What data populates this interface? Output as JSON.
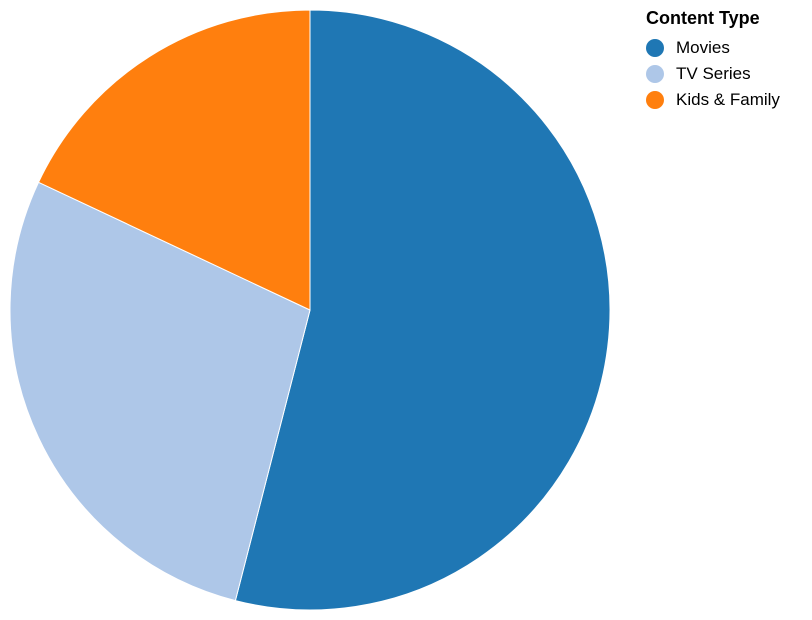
{
  "chart_data": {
    "type": "pie",
    "legend_title": "Content Type",
    "legend_position": "top-right",
    "categories": [
      "Movies",
      "TV Series",
      "Kids & Family"
    ],
    "values": [
      54,
      28,
      18
    ],
    "colors": [
      "#1f77b4",
      "#aec7e8",
      "#ff7f0e"
    ]
  }
}
